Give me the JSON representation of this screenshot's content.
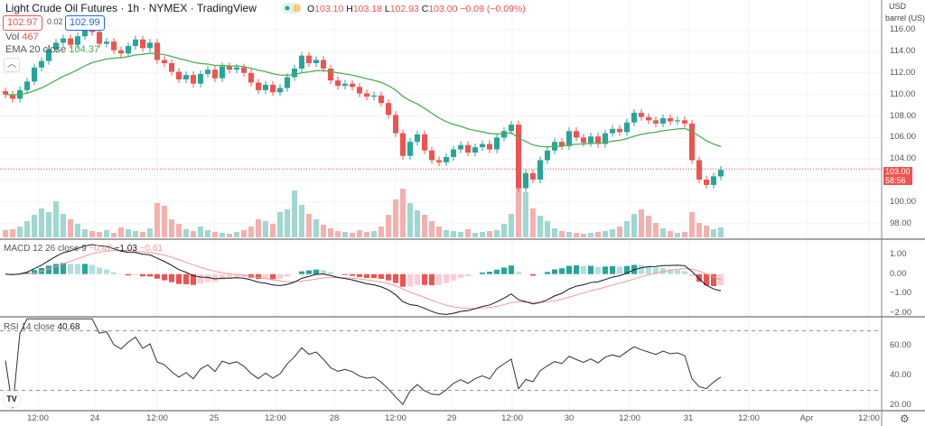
{
  "header": {
    "title": "Light Crude Oil Futures · 1h · NYMEX · TradingView",
    "ohlc": {
      "o_label": "O",
      "o": "103.10",
      "h_label": "H",
      "h": "103.18",
      "l_label": "L",
      "l": "102.93",
      "c_label": "C",
      "c": "103.00",
      "change": "−0.09 (−0.09%)"
    },
    "bid": "102.97",
    "spread": "0.02",
    "ask": "102.99",
    "vol_label": "Vol",
    "vol_value": "467",
    "ema_label": "EMA 20 close",
    "ema_value": "104.37",
    "collapse_icon": "chevron-up-icon"
  },
  "price_axis": {
    "currency": "USD",
    "unit": "barrel (US)",
    "ticks": [
      "116.00",
      "114.00",
      "112.00",
      "110.00",
      "108.00",
      "106.00",
      "104.00",
      "100.00",
      "98.00"
    ],
    "last_price": "103.00",
    "countdown": "58:56"
  },
  "macd": {
    "label": "MACD 12 26 close 9",
    "v1": "−0.42",
    "v2": "−1.03",
    "v3": "−0.61",
    "ticks": [
      "1.00",
      "0.00",
      "−1.00",
      "−2.00"
    ]
  },
  "rsi": {
    "label": "RSI 14 close",
    "value": "40.68",
    "ticks": [
      "60.00",
      "40.00",
      "20.00"
    ]
  },
  "time_axis": [
    "12:00",
    "24",
    "12:00",
    "25",
    "12:00",
    "28",
    "12:00",
    "29",
    "12:00",
    "30",
    "12:00",
    "31",
    "12:00",
    "Apr",
    "12:00"
  ],
  "colors": {
    "up": "#26a69a",
    "down": "#ef5350",
    "ema": "#4caf50",
    "macd": "#131722",
    "signal": "#ef9a9a",
    "rsi": "#333333"
  },
  "chart_data": {
    "type": "candlestick",
    "ylim": [
      97,
      117
    ],
    "closes": [
      110,
      109.6,
      110.4,
      111.2,
      112.5,
      113.1,
      114.2,
      114.8,
      115.2,
      114.6,
      115.4,
      116.1,
      115.8,
      114.7,
      114.9,
      114.1,
      113.8,
      114.5,
      115.1,
      114.3,
      114.8,
      113.2,
      112.9,
      112.1,
      111.4,
      111.8,
      111.0,
      111.9,
      112.3,
      111.5,
      112.6,
      112.3,
      112.5,
      112.0,
      111.1,
      110.4,
      110.9,
      110.2,
      110.6,
      111.6,
      112.4,
      113.6,
      112.9,
      113.2,
      112.4,
      111.3,
      110.8,
      111.0,
      110.7,
      110.1,
      109.8,
      109.9,
      109.2,
      108.1,
      106.4,
      104.3,
      105.6,
      106.3,
      104.8,
      103.9,
      103.7,
      104.2,
      104.9,
      105.3,
      104.6,
      105.1,
      105.4,
      104.9,
      106.0,
      106.6,
      107.2,
      101.3,
      102.7,
      102.1,
      103.9,
      104.8,
      105.6,
      105.2,
      106.6,
      106.0,
      105.5,
      106.1,
      105.4,
      106.4,
      106.8,
      106.5,
      107.4,
      108.3,
      107.9,
      107.6,
      107.3,
      107.8,
      107.5,
      107.6,
      107.3,
      103.9,
      102.1,
      101.6,
      102.4,
      103.0
    ],
    "volumes": [
      800,
      900,
      1200,
      1800,
      2500,
      3200,
      2800,
      4000,
      2600,
      2000,
      1500,
      900,
      700,
      600,
      800,
      500,
      1100,
      900,
      700,
      600,
      1000,
      3800,
      3500,
      2000,
      1500,
      900,
      700,
      1200,
      800,
      600,
      500,
      400,
      600,
      800,
      1200,
      2000,
      1800,
      1500,
      2800,
      3100,
      5200,
      3600,
      2600,
      2000,
      1400,
      1000,
      700,
      600,
      500,
      800,
      600,
      700,
      1200,
      2500,
      4200,
      5400,
      3800,
      3000,
      2500,
      1800,
      1200,
      800,
      700,
      600,
      900,
      500,
      600,
      700,
      800,
      1500,
      2600,
      6000,
      5000,
      3200,
      2400,
      1800,
      1000,
      700,
      600,
      500,
      400,
      500,
      600,
      700,
      900,
      1200,
      1800,
      2600,
      3100,
      2400,
      1600,
      1000,
      700,
      500,
      600,
      2800,
      1600,
      1300,
      900,
      1100
    ]
  }
}
